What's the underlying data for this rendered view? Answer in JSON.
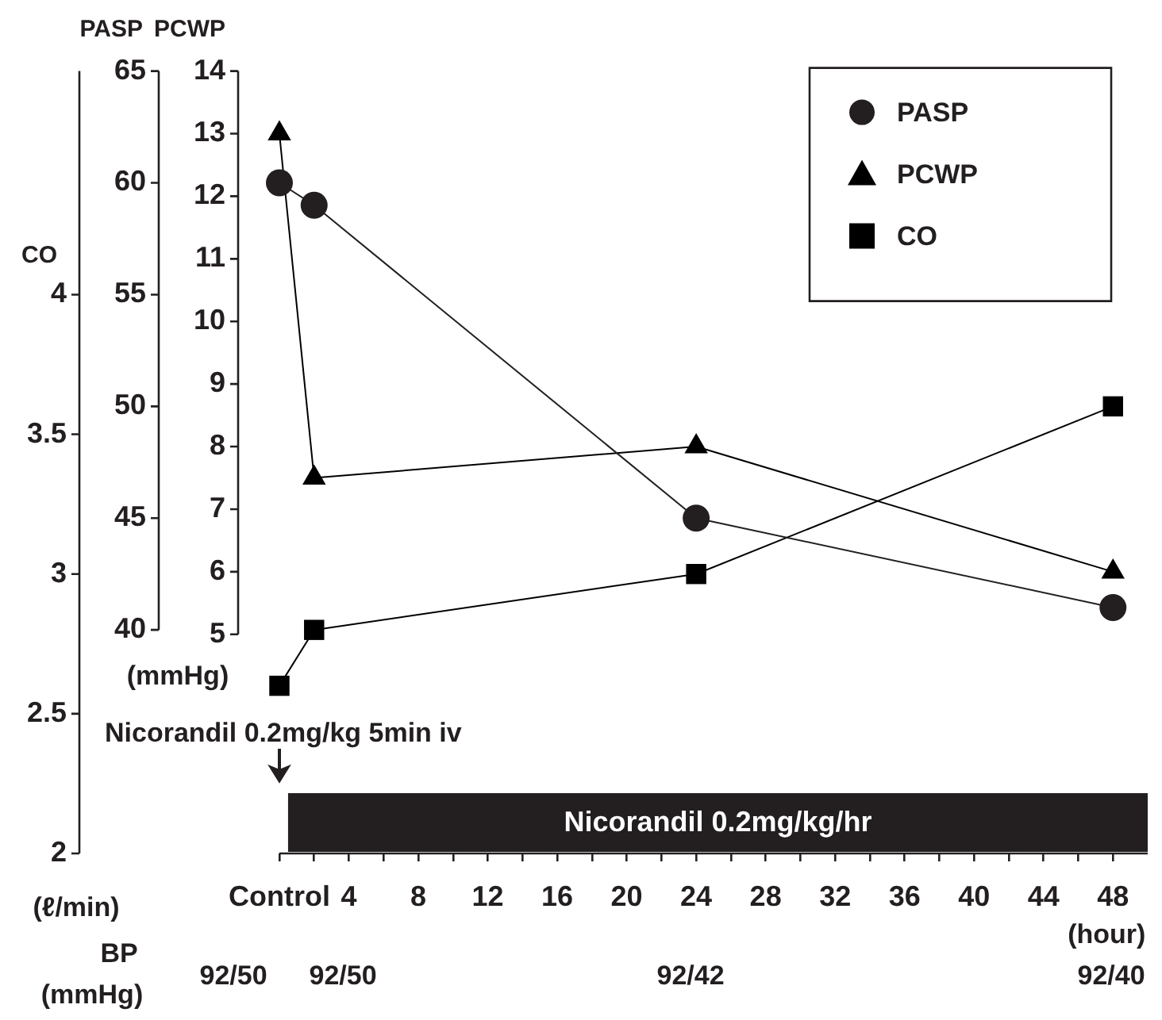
{
  "chart_data": {
    "type": "line",
    "x": [
      0,
      2,
      24,
      48
    ],
    "series": [
      {
        "name": "PASP",
        "color": "#231f20",
        "marker": "circle",
        "axis": "y2",
        "values": [
          60,
          59,
          45,
          41
        ]
      },
      {
        "name": "PCWP",
        "color": "#000000",
        "marker": "triangle",
        "axis": "y",
        "values": [
          13,
          7.5,
          8,
          6
        ]
      },
      {
        "name": "CO",
        "color": "#000000",
        "marker": "square",
        "axis": "y3",
        "values": [
          2.6,
          2.8,
          3.0,
          3.6
        ]
      }
    ],
    "xlabel": "(hour)",
    "ylabel": "PCWP",
    "y2label": "PASP",
    "y3label": "CO",
    "xlim": [
      0,
      50
    ],
    "xticks": [
      {
        "value": 0,
        "label": "Control"
      },
      {
        "value": 2,
        "label": null
      },
      4,
      {
        "value": 6,
        "label": null
      },
      8,
      {
        "value": 10,
        "label": null
      },
      12,
      {
        "value": 14,
        "label": null
      },
      16,
      {
        "value": 18,
        "label": null
      },
      20,
      {
        "value": 22,
        "label": null
      },
      24,
      {
        "value": 26,
        "label": null
      },
      28,
      {
        "value": 30,
        "label": null
      },
      32,
      {
        "value": 34,
        "label": null
      },
      36,
      {
        "value": 38,
        "label": null
      },
      40,
      {
        "value": 42,
        "label": null
      },
      44,
      {
        "value": 46,
        "label": null
      },
      48
    ],
    "ylim": [
      1.5,
      14
    ],
    "yticks": [
      5,
      6,
      7,
      8,
      9,
      10,
      11,
      12,
      13,
      14
    ],
    "y2lim": [
      30,
      65
    ],
    "y2ticks": [
      40,
      45,
      50,
      55,
      60,
      65
    ],
    "y3lim": [
      2,
      4.8
    ],
    "y3ticks": [
      2,
      2.5,
      3,
      3.5,
      4
    ],
    "ref_lines": [
      {
        "axis": "x",
        "value": 0,
        "label": "Nicorandil 0.2mg/kg 5min iv"
      }
    ],
    "bands": [
      {
        "axis": "x",
        "from": 0.5,
        "to": 50,
        "label": "Nicorandil 0.2mg/kg/hr",
        "color": "#231f20"
      }
    ],
    "annotations": [
      "(mmHg)",
      "(ℓ/min)",
      "BP",
      "(mmHg)",
      "92/50",
      "92/50",
      "92/42",
      "92/40"
    ],
    "legend": "top right"
  }
}
